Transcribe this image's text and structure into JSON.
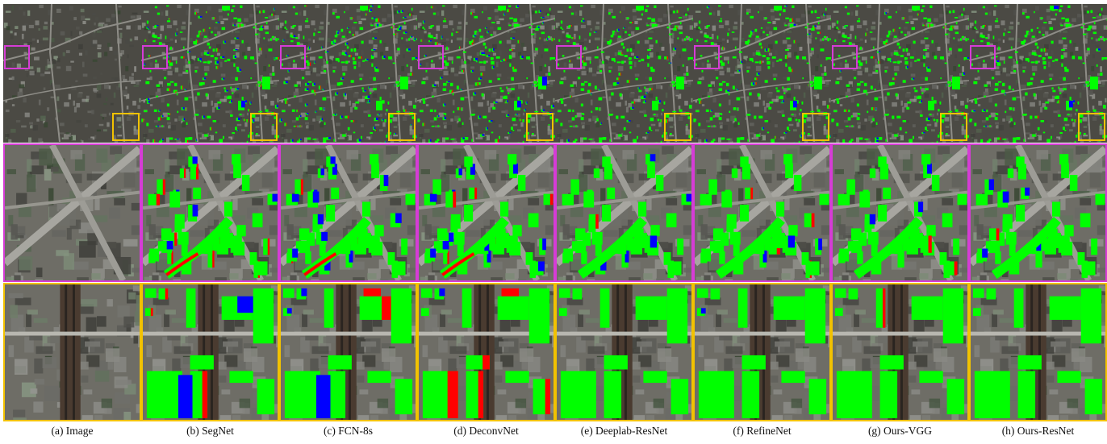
{
  "columns": [
    {
      "caption": "(a) Image",
      "kind": "image"
    },
    {
      "caption": "(b) SegNet",
      "kind": "seg"
    },
    {
      "caption": "(c) FCN-8s",
      "kind": "seg"
    },
    {
      "caption": "(d) DeconvNet",
      "kind": "seg"
    },
    {
      "caption": "(e) Deeplab-ResNet",
      "kind": "seg"
    },
    {
      "caption": "(f) RefineNet",
      "kind": "seg"
    },
    {
      "caption": "(g) Ours-VGG",
      "kind": "seg"
    },
    {
      "caption": "(h) Ours-ResNet",
      "kind": "seg"
    }
  ],
  "rows": [
    {
      "scene": "overview"
    },
    {
      "scene": "zoom-magenta",
      "border_color": "#d63cd6"
    },
    {
      "scene": "zoom-yellow",
      "border_color": "#f2c200"
    }
  ],
  "colors": {
    "building_true_positive": "#00ff00",
    "false_positive": "#0000ff",
    "false_negative": "#ff0000",
    "magenta_box": "#d63cd6",
    "yellow_box": "#f2c200"
  }
}
